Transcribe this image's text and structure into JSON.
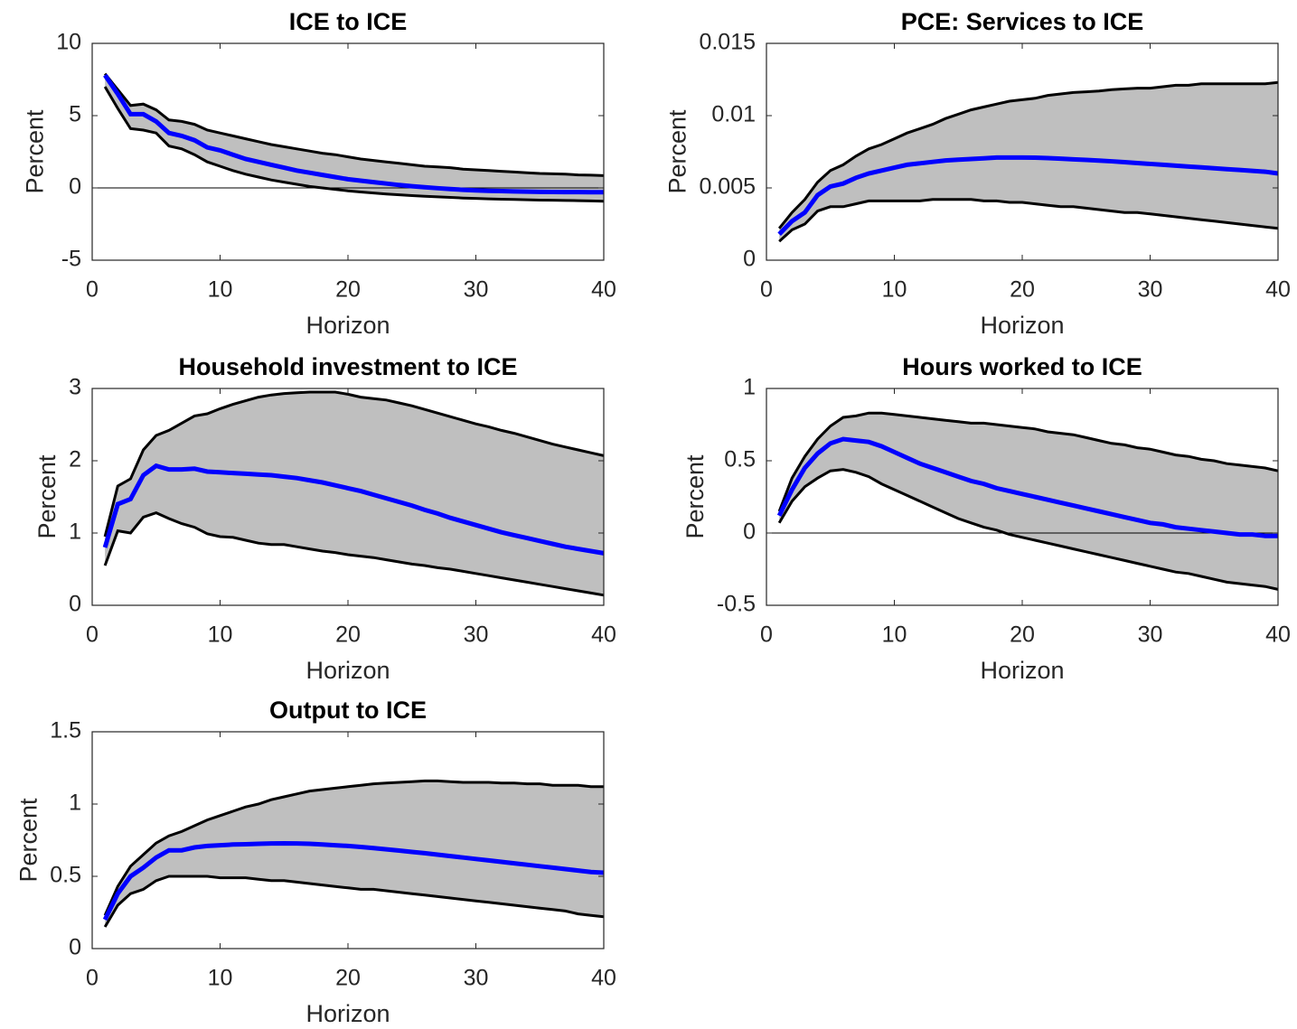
{
  "chart_data": [
    {
      "type": "line",
      "title": "ICE to ICE",
      "xlabel": "Horizon",
      "ylabel": "Percent",
      "x": [
        1,
        2,
        3,
        4,
        5,
        6,
        7,
        8,
        9,
        10,
        11,
        12,
        13,
        14,
        15,
        16,
        17,
        18,
        19,
        20,
        21,
        22,
        23,
        24,
        25,
        26,
        27,
        28,
        29,
        30,
        31,
        32,
        33,
        34,
        35,
        36,
        37,
        38,
        39,
        40
      ],
      "series": [
        {
          "color": "#0000ff",
          "values": [
            7.8,
            6.5,
            5.1,
            5.1,
            4.6,
            3.8,
            3.6,
            3.3,
            2.8,
            2.6,
            2.3,
            2.0,
            1.8,
            1.6,
            1.4,
            1.2,
            1.05,
            0.9,
            0.75,
            0.6,
            0.5,
            0.4,
            0.3,
            0.2,
            0.12,
            0.05,
            -0.02,
            -0.08,
            -0.13,
            -0.17,
            -0.2,
            -0.22,
            -0.24,
            -0.26,
            -0.27,
            -0.28,
            -0.29,
            -0.29,
            -0.3,
            -0.3
          ]
        }
      ],
      "band": {
        "fill": "#bfbfbf",
        "edge_color": "#000000",
        "upper": [
          7.9,
          6.8,
          5.7,
          5.8,
          5.4,
          4.7,
          4.6,
          4.4,
          4.0,
          3.8,
          3.6,
          3.4,
          3.2,
          3.0,
          2.85,
          2.7,
          2.55,
          2.4,
          2.3,
          2.15,
          2.0,
          1.9,
          1.8,
          1.7,
          1.6,
          1.5,
          1.45,
          1.4,
          1.3,
          1.25,
          1.2,
          1.15,
          1.1,
          1.05,
          1.0,
          0.98,
          0.95,
          0.9,
          0.88,
          0.85
        ],
        "lower": [
          7.0,
          5.5,
          4.1,
          4.0,
          3.8,
          2.9,
          2.7,
          2.3,
          1.8,
          1.5,
          1.2,
          0.95,
          0.75,
          0.55,
          0.4,
          0.25,
          0.1,
          0.0,
          -0.1,
          -0.2,
          -0.28,
          -0.35,
          -0.42,
          -0.48,
          -0.53,
          -0.58,
          -0.62,
          -0.66,
          -0.7,
          -0.73,
          -0.76,
          -0.78,
          -0.8,
          -0.82,
          -0.84,
          -0.85,
          -0.87,
          -0.88,
          -0.9,
          -0.92
        ]
      },
      "xlim": [
        0,
        40
      ],
      "xticks": [
        0,
        10,
        20,
        30,
        40
      ],
      "ylim": [
        -5,
        10
      ],
      "yticks": [
        -5,
        0,
        5,
        10
      ],
      "zero_line": true
    },
    {
      "type": "line",
      "title": "PCE: Services to ICE",
      "xlabel": "Horizon",
      "ylabel": "Percent",
      "x": [
        1,
        2,
        3,
        4,
        5,
        6,
        7,
        8,
        9,
        10,
        11,
        12,
        13,
        14,
        15,
        16,
        17,
        18,
        19,
        20,
        21,
        22,
        23,
        24,
        25,
        26,
        27,
        28,
        29,
        30,
        31,
        32,
        33,
        34,
        35,
        36,
        37,
        38,
        39,
        40
      ],
      "series": [
        {
          "color": "#0000ff",
          "values": [
            0.0018,
            0.0027,
            0.0033,
            0.0045,
            0.0051,
            0.0053,
            0.0057,
            0.006,
            0.0062,
            0.0064,
            0.0066,
            0.0067,
            0.0068,
            0.0069,
            0.00695,
            0.007,
            0.00705,
            0.0071,
            0.0071,
            0.0071,
            0.00709,
            0.00706,
            0.00702,
            0.00698,
            0.00694,
            0.00689,
            0.00684,
            0.00678,
            0.00672,
            0.00666,
            0.0066,
            0.00654,
            0.00648,
            0.00642,
            0.00636,
            0.0063,
            0.00624,
            0.00618,
            0.00612,
            0.006
          ]
        }
      ],
      "band": {
        "fill": "#bfbfbf",
        "edge_color": "#000000",
        "upper": [
          0.0022,
          0.0033,
          0.0042,
          0.0054,
          0.0062,
          0.0066,
          0.0072,
          0.0077,
          0.008,
          0.0084,
          0.0088,
          0.0091,
          0.0094,
          0.0098,
          0.0101,
          0.0104,
          0.0106,
          0.0108,
          0.011,
          0.0111,
          0.0112,
          0.0114,
          0.0115,
          0.0116,
          0.01165,
          0.0117,
          0.0118,
          0.01185,
          0.0119,
          0.0119,
          0.012,
          0.0121,
          0.0121,
          0.0122,
          0.0122,
          0.0122,
          0.0122,
          0.0122,
          0.0122,
          0.0123
        ],
        "lower": [
          0.0013,
          0.0021,
          0.0025,
          0.0034,
          0.0037,
          0.0037,
          0.0039,
          0.0041,
          0.0041,
          0.0041,
          0.0041,
          0.0041,
          0.0042,
          0.0042,
          0.0042,
          0.0042,
          0.0041,
          0.0041,
          0.004,
          0.004,
          0.0039,
          0.0038,
          0.0037,
          0.0037,
          0.0036,
          0.0035,
          0.0034,
          0.0033,
          0.0033,
          0.0032,
          0.0031,
          0.003,
          0.0029,
          0.0028,
          0.0027,
          0.0026,
          0.0025,
          0.0024,
          0.0023,
          0.0022
        ]
      },
      "xlim": [
        0,
        40
      ],
      "xticks": [
        0,
        10,
        20,
        30,
        40
      ],
      "ylim": [
        0,
        0.015
      ],
      "yticks": [
        0,
        0.005,
        0.01,
        0.015
      ],
      "zero_line": false
    },
    {
      "type": "line",
      "title": "Household investment to ICE",
      "xlabel": "Horizon",
      "ylabel": "Percent",
      "x": [
        1,
        2,
        3,
        4,
        5,
        6,
        7,
        8,
        9,
        10,
        11,
        12,
        13,
        14,
        15,
        16,
        17,
        18,
        19,
        20,
        21,
        22,
        23,
        24,
        25,
        26,
        27,
        28,
        29,
        30,
        31,
        32,
        33,
        34,
        35,
        36,
        37,
        38,
        39,
        40
      ],
      "series": [
        {
          "color": "#0000ff",
          "values": [
            0.8,
            1.4,
            1.47,
            1.8,
            1.93,
            1.88,
            1.88,
            1.89,
            1.85,
            1.84,
            1.83,
            1.82,
            1.81,
            1.8,
            1.78,
            1.76,
            1.73,
            1.7,
            1.66,
            1.62,
            1.58,
            1.53,
            1.48,
            1.43,
            1.38,
            1.32,
            1.27,
            1.21,
            1.16,
            1.11,
            1.06,
            1.01,
            0.97,
            0.93,
            0.89,
            0.85,
            0.81,
            0.78,
            0.75,
            0.72
          ]
        }
      ],
      "band": {
        "fill": "#bfbfbf",
        "edge_color": "#000000",
        "upper": [
          0.95,
          1.65,
          1.75,
          2.15,
          2.35,
          2.42,
          2.52,
          2.62,
          2.65,
          2.72,
          2.78,
          2.83,
          2.88,
          2.91,
          2.93,
          2.94,
          2.95,
          2.95,
          2.95,
          2.92,
          2.88,
          2.86,
          2.84,
          2.8,
          2.76,
          2.71,
          2.66,
          2.61,
          2.56,
          2.51,
          2.47,
          2.42,
          2.38,
          2.33,
          2.28,
          2.23,
          2.19,
          2.15,
          2.11,
          2.07
        ],
        "lower": [
          0.55,
          1.03,
          1.0,
          1.22,
          1.28,
          1.2,
          1.13,
          1.08,
          0.99,
          0.95,
          0.94,
          0.9,
          0.86,
          0.84,
          0.84,
          0.81,
          0.78,
          0.75,
          0.73,
          0.7,
          0.68,
          0.66,
          0.63,
          0.6,
          0.57,
          0.55,
          0.52,
          0.5,
          0.47,
          0.44,
          0.41,
          0.38,
          0.35,
          0.32,
          0.29,
          0.26,
          0.23,
          0.2,
          0.17,
          0.14
        ]
      },
      "xlim": [
        0,
        40
      ],
      "xticks": [
        0,
        10,
        20,
        30,
        40
      ],
      "ylim": [
        0,
        3
      ],
      "yticks": [
        0,
        1,
        2,
        3
      ],
      "zero_line": false
    },
    {
      "type": "line",
      "title": "Hours worked to ICE",
      "xlabel": "Horizon",
      "ylabel": "Percent",
      "x": [
        1,
        2,
        3,
        4,
        5,
        6,
        7,
        8,
        9,
        10,
        11,
        12,
        13,
        14,
        15,
        16,
        17,
        18,
        19,
        20,
        21,
        22,
        23,
        24,
        25,
        26,
        27,
        28,
        29,
        30,
        31,
        32,
        33,
        34,
        35,
        36,
        37,
        38,
        39,
        40
      ],
      "series": [
        {
          "color": "#0000ff",
          "values": [
            0.12,
            0.3,
            0.45,
            0.55,
            0.62,
            0.65,
            0.64,
            0.63,
            0.6,
            0.56,
            0.52,
            0.48,
            0.45,
            0.42,
            0.39,
            0.36,
            0.34,
            0.31,
            0.29,
            0.27,
            0.25,
            0.23,
            0.21,
            0.19,
            0.17,
            0.15,
            0.13,
            0.11,
            0.09,
            0.07,
            0.06,
            0.04,
            0.03,
            0.02,
            0.01,
            0.0,
            -0.01,
            -0.01,
            -0.02,
            -0.02
          ]
        }
      ],
      "band": {
        "fill": "#bfbfbf",
        "edge_color": "#000000",
        "upper": [
          0.15,
          0.38,
          0.53,
          0.65,
          0.74,
          0.8,
          0.81,
          0.83,
          0.83,
          0.82,
          0.81,
          0.8,
          0.79,
          0.78,
          0.77,
          0.76,
          0.76,
          0.75,
          0.74,
          0.73,
          0.72,
          0.7,
          0.69,
          0.68,
          0.66,
          0.64,
          0.62,
          0.61,
          0.59,
          0.58,
          0.56,
          0.54,
          0.53,
          0.51,
          0.5,
          0.48,
          0.47,
          0.46,
          0.45,
          0.43
        ],
        "lower": [
          0.07,
          0.22,
          0.32,
          0.38,
          0.43,
          0.44,
          0.42,
          0.39,
          0.34,
          0.3,
          0.26,
          0.22,
          0.18,
          0.14,
          0.1,
          0.07,
          0.04,
          0.02,
          -0.01,
          -0.03,
          -0.05,
          -0.07,
          -0.09,
          -0.11,
          -0.13,
          -0.15,
          -0.17,
          -0.19,
          -0.21,
          -0.23,
          -0.25,
          -0.27,
          -0.28,
          -0.3,
          -0.32,
          -0.34,
          -0.35,
          -0.36,
          -0.37,
          -0.39
        ]
      },
      "xlim": [
        0,
        40
      ],
      "xticks": [
        0,
        10,
        20,
        30,
        40
      ],
      "ylim": [
        -0.5,
        1
      ],
      "yticks": [
        -0.5,
        0,
        0.5,
        1
      ],
      "zero_line": true
    },
    {
      "type": "line",
      "title": "Output to ICE",
      "xlabel": "Horizon",
      "ylabel": "Percent",
      "x": [
        1,
        2,
        3,
        4,
        5,
        6,
        7,
        8,
        9,
        10,
        11,
        12,
        13,
        14,
        15,
        16,
        17,
        18,
        19,
        20,
        21,
        22,
        23,
        24,
        25,
        26,
        27,
        28,
        29,
        30,
        31,
        32,
        33,
        34,
        35,
        36,
        37,
        38,
        39,
        40
      ],
      "series": [
        {
          "color": "#0000ff",
          "values": [
            0.2,
            0.38,
            0.5,
            0.56,
            0.63,
            0.68,
            0.68,
            0.7,
            0.71,
            0.715,
            0.72,
            0.722,
            0.725,
            0.727,
            0.728,
            0.727,
            0.725,
            0.72,
            0.715,
            0.71,
            0.703,
            0.695,
            0.687,
            0.678,
            0.669,
            0.66,
            0.65,
            0.64,
            0.63,
            0.62,
            0.61,
            0.6,
            0.59,
            0.58,
            0.57,
            0.56,
            0.55,
            0.54,
            0.53,
            0.525
          ]
        }
      ],
      "band": {
        "fill": "#bfbfbf",
        "edge_color": "#000000",
        "upper": [
          0.23,
          0.43,
          0.57,
          0.65,
          0.73,
          0.78,
          0.81,
          0.85,
          0.89,
          0.92,
          0.95,
          0.98,
          1.0,
          1.03,
          1.05,
          1.07,
          1.09,
          1.1,
          1.11,
          1.12,
          1.13,
          1.14,
          1.145,
          1.15,
          1.155,
          1.16,
          1.16,
          1.155,
          1.15,
          1.15,
          1.15,
          1.145,
          1.145,
          1.14,
          1.14,
          1.13,
          1.13,
          1.13,
          1.12,
          1.12
        ],
        "lower": [
          0.15,
          0.3,
          0.38,
          0.41,
          0.47,
          0.5,
          0.5,
          0.5,
          0.5,
          0.49,
          0.49,
          0.49,
          0.48,
          0.47,
          0.47,
          0.46,
          0.45,
          0.44,
          0.43,
          0.42,
          0.41,
          0.41,
          0.4,
          0.39,
          0.38,
          0.37,
          0.36,
          0.35,
          0.34,
          0.33,
          0.32,
          0.31,
          0.3,
          0.29,
          0.28,
          0.27,
          0.26,
          0.24,
          0.23,
          0.22
        ]
      },
      "xlim": [
        0,
        40
      ],
      "xticks": [
        0,
        10,
        20,
        30,
        40
      ],
      "ylim": [
        0,
        1.5
      ],
      "yticks": [
        0,
        0.5,
        1,
        1.5
      ],
      "zero_line": false
    }
  ]
}
